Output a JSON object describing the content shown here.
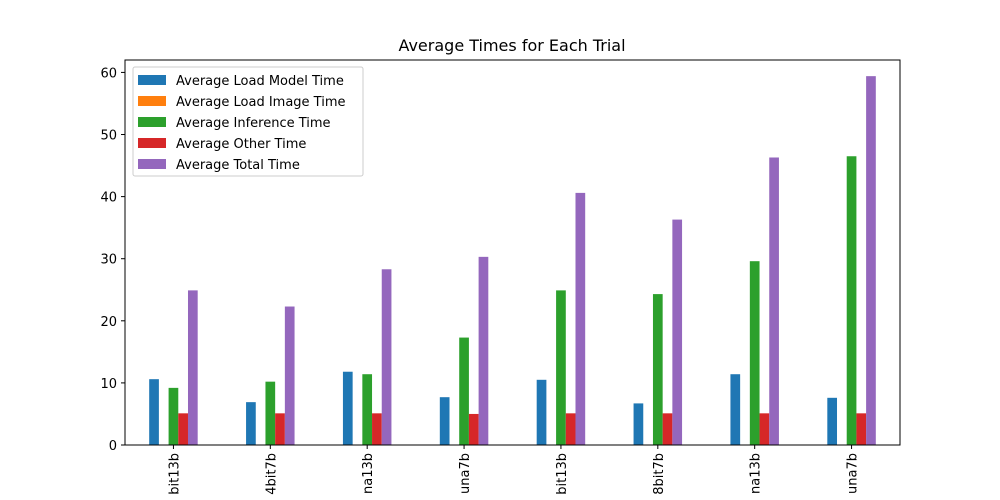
{
  "chart_data": {
    "type": "bar",
    "title": "Average Times for Each Trial",
    "xlabel": "",
    "ylabel": "",
    "categories": [
      "bit13b",
      "4bit7b",
      "na13b",
      "una7b",
      "bit13b",
      "8bit7b",
      "na13b",
      "una7b"
    ],
    "ylim": [
      0,
      62
    ],
    "yticks": [
      0,
      10,
      20,
      30,
      40,
      50,
      60
    ],
    "grid": false,
    "legend_position": "top-left",
    "series": [
      {
        "name": "Average Load Model Time",
        "color": "#1f77b4",
        "values": [
          10.6,
          6.9,
          11.8,
          7.7,
          10.5,
          6.7,
          11.4,
          7.6
        ]
      },
      {
        "name": "Average Load Image Time",
        "color": "#ff7f0e",
        "values": [
          0.05,
          0.05,
          0.05,
          0.05,
          0.05,
          0.05,
          0.05,
          0.05
        ]
      },
      {
        "name": "Average Inference Time",
        "color": "#2ca02c",
        "values": [
          9.2,
          10.2,
          11.4,
          17.3,
          24.9,
          24.3,
          29.6,
          46.5
        ]
      },
      {
        "name": "Average Other Time",
        "color": "#d62728",
        "values": [
          5.1,
          5.1,
          5.1,
          5.0,
          5.1,
          5.1,
          5.1,
          5.1
        ]
      },
      {
        "name": "Average Total Time",
        "color": "#9467bd",
        "values": [
          24.9,
          22.3,
          28.3,
          30.3,
          40.6,
          36.3,
          46.3,
          59.4
        ]
      }
    ]
  }
}
